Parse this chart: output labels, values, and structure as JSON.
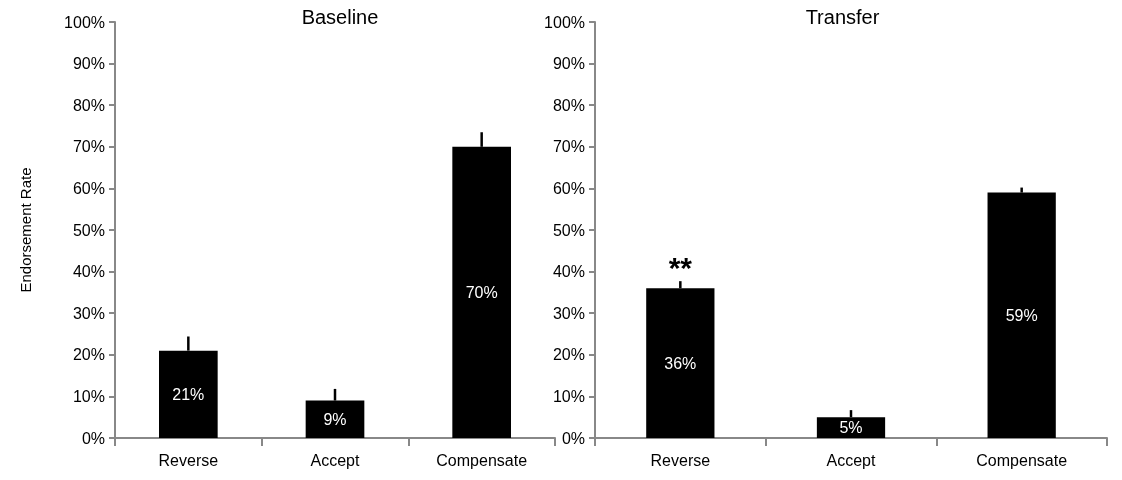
{
  "chart_data": [
    {
      "type": "bar",
      "title": "Baseline",
      "ylabel": "Endorsement Rate",
      "categories": [
        "Reverse",
        "Accept",
        "Compensate"
      ],
      "series": [
        {
          "color": "#000000",
          "values": [
            21,
            9,
            70
          ],
          "value_labels": [
            "21%",
            "9%",
            "70%"
          ],
          "errors": [
            [
              21,
              24.4
            ],
            [
              9,
              11.8
            ],
            [
              70,
              73.5
            ]
          ]
        }
      ],
      "ylim": [
        0,
        100
      ],
      "yticks": [
        {
          "value": 0,
          "label": "0%"
        },
        {
          "value": 10,
          "label": "10%"
        },
        {
          "value": 20,
          "label": "20%"
        },
        {
          "value": 30,
          "label": "30%"
        },
        {
          "value": 40,
          "label": "40%"
        },
        {
          "value": 50,
          "label": "50%"
        },
        {
          "value": 60,
          "label": "60%"
        },
        {
          "value": 70,
          "label": "70%"
        },
        {
          "value": 80,
          "label": "80%"
        },
        {
          "value": 90,
          "label": "90%"
        },
        {
          "value": 100,
          "label": "100%"
        }
      ],
      "grid": false
    },
    {
      "type": "bar",
      "title": "Transfer",
      "categories": [
        "Reverse",
        "Accept",
        "Compensate"
      ],
      "series": [
        {
          "color": "#000000",
          "values": [
            36,
            5,
            59
          ],
          "value_labels": [
            "36%",
            "5%",
            "59%"
          ],
          "errors": [
            [
              36,
              37.7
            ],
            [
              5,
              6.7
            ],
            [
              59,
              60.2
            ]
          ]
        }
      ],
      "annotations": [
        "**"
      ],
      "ylim": [
        0,
        100
      ],
      "yticks": [
        {
          "value": 0,
          "label": "0%"
        },
        {
          "value": 10,
          "label": "10%"
        },
        {
          "value": 20,
          "label": "20%"
        },
        {
          "value": 30,
          "label": "30%"
        },
        {
          "value": 40,
          "label": "40%"
        },
        {
          "value": 50,
          "label": "50%"
        },
        {
          "value": 60,
          "label": "60%"
        },
        {
          "value": 70,
          "label": "70%"
        },
        {
          "value": 80,
          "label": "80%"
        },
        {
          "value": 90,
          "label": "90%"
        },
        {
          "value": 100,
          "label": "100%"
        }
      ],
      "grid": false
    }
  ]
}
